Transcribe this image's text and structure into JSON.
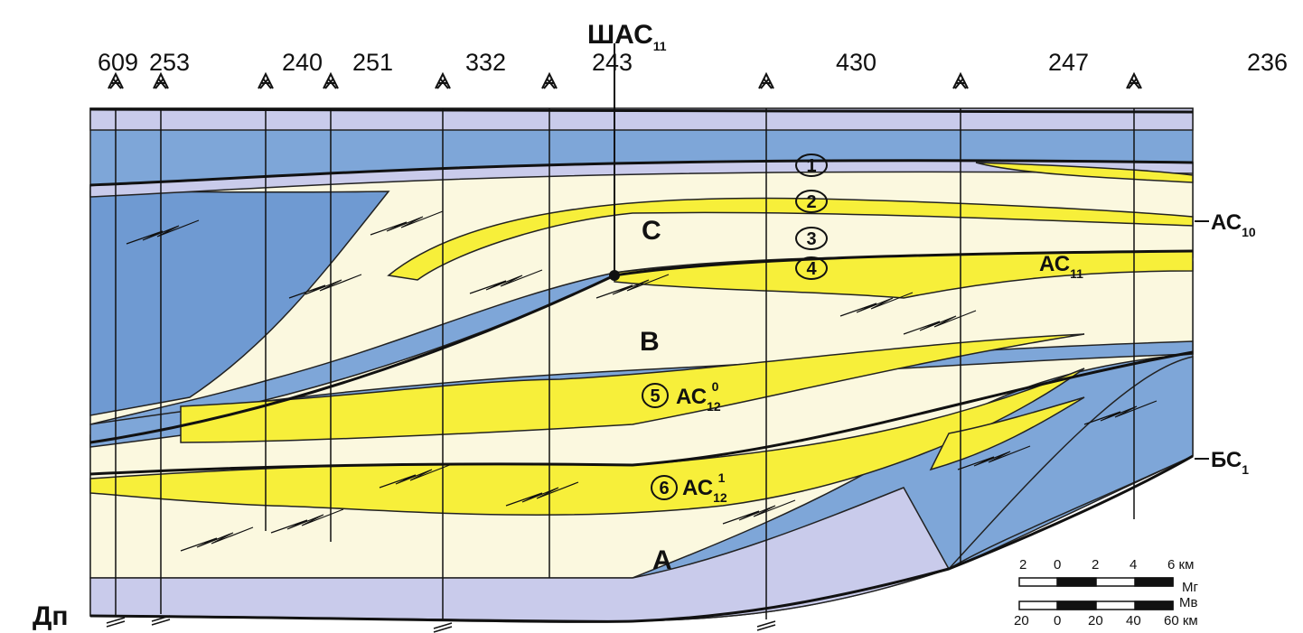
{
  "title": {
    "base": "ШАС",
    "sub": "11"
  },
  "wells": [
    "609",
    "253",
    "240",
    "251",
    "332",
    "243",
    "430",
    "247",
    "236"
  ],
  "horizons": {
    "ac10": {
      "base": "АС",
      "sub": "10"
    },
    "ac11": {
      "base": "АС",
      "sub": "11"
    },
    "bs1": {
      "base": "БС",
      "sub": "1"
    },
    "dp": "Дп"
  },
  "units": [
    "С",
    "В",
    "А"
  ],
  "bodies": [
    "1",
    "2",
    "3",
    "4",
    "5",
    "6"
  ],
  "reservoirs": {
    "ac12_0": {
      "base": "АС",
      "sub": "12",
      "sup": "0"
    },
    "ac12_1": {
      "base": "АС",
      "sub": "12",
      "sup": "1"
    }
  },
  "scale": {
    "vertical": {
      "ticks": [
        "2",
        "0",
        "2",
        "4",
        "6 км"
      ],
      "label": "Мг"
    },
    "horizontal": {
      "ticks": [
        "20",
        "0",
        "20",
        "40",
        "60 км"
      ],
      "label": "Мв"
    }
  }
}
